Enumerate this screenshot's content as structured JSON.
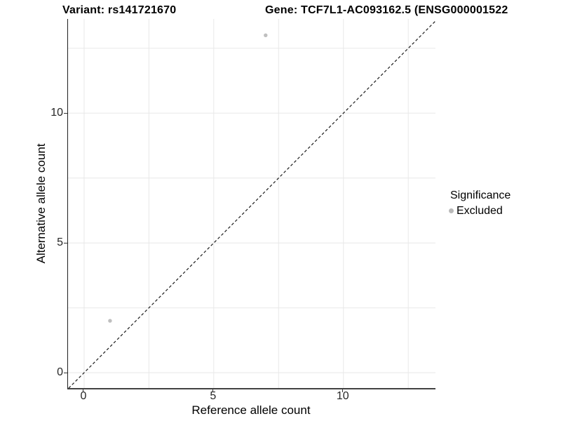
{
  "header": {
    "variant_title": "Variant: rs141721670",
    "gene_title": "Gene: TCF7L1-AC093162.5 (ENSG000001522"
  },
  "chart_data": {
    "type": "scatter",
    "title": "Variant: rs141721670   Gene: TCF7L1-AC093162.5 (ENSG000001522",
    "xlabel": "Reference allele count",
    "ylabel": "Alternative allele count",
    "xlim": [
      -0.62,
      13.55
    ],
    "ylim": [
      -0.59,
      13.63
    ],
    "x_ticks": [
      0,
      5,
      10
    ],
    "x_tick_labels": [
      "0",
      "5",
      "10"
    ],
    "y_ticks": [
      0,
      5,
      10
    ],
    "y_tick_labels": [
      "0",
      "5",
      "10"
    ],
    "gridlines": [
      0,
      2.5,
      5,
      7.5,
      10,
      12.5
    ],
    "grid": true,
    "series": [
      {
        "name": "Excluded",
        "marker": "circle",
        "color": "#bfbfbf",
        "points": [
          {
            "x": 1,
            "y": 2
          },
          {
            "x": 7,
            "y": 13
          }
        ]
      }
    ],
    "reference_line": {
      "type": "identity y=x",
      "style": "dashed",
      "color": "#1a1a1a"
    },
    "legend": {
      "title": "Significance",
      "position": "right",
      "items": [
        {
          "label": "Excluded",
          "color": "#b9b9b9"
        }
      ]
    },
    "colors": {
      "background": "#ffffff",
      "gridline": "#e8e8e8",
      "axis_line": "#333333",
      "tick_text": "#262626"
    }
  }
}
